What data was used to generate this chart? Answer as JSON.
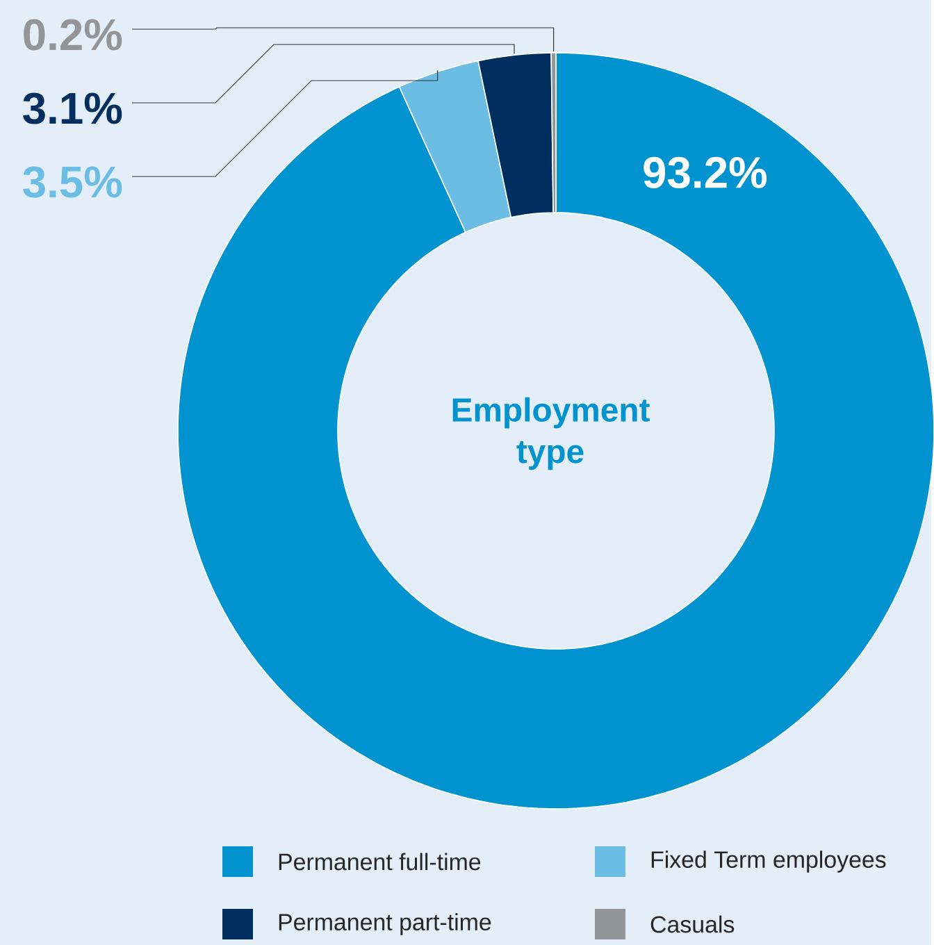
{
  "chart_data": {
    "type": "donut",
    "title": "Employment type",
    "categories": [
      "Permanent full-time",
      "Fixed Term employees",
      "Permanent part-time",
      "Casuals"
    ],
    "values": [
      93.2,
      3.5,
      3.1,
      0.2
    ],
    "colors": [
      "#0093d0",
      "#6bbde3",
      "#002f5f",
      "#939598"
    ],
    "value_labels": [
      "93.2%",
      "3.5%",
      "3.1%",
      "0.2%"
    ],
    "legend": "bottom"
  }
}
